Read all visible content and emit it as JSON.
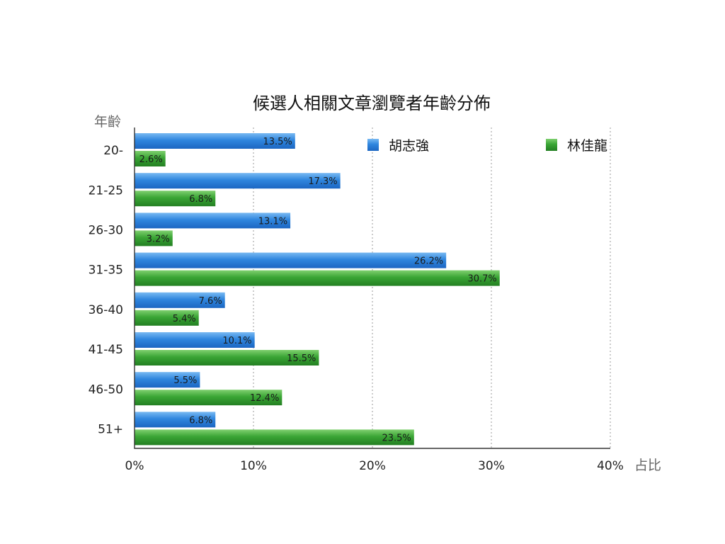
{
  "chart_data": {
    "type": "bar",
    "orientation": "horizontal",
    "title": "候選人相關文章瀏覽者年齡分佈",
    "ylabel": "年齡",
    "xlabel": "占比",
    "categories": [
      "20-",
      "21-25",
      "26-30",
      "31-35",
      "36-40",
      "41-45",
      "46-50",
      "51+"
    ],
    "series": [
      {
        "name": "胡志強",
        "color": "#2f86de",
        "values": [
          13.5,
          17.3,
          13.1,
          26.2,
          7.6,
          10.1,
          5.5,
          6.8
        ],
        "labels": [
          "13.5%",
          "17.3%",
          "13.1%",
          "26.2%",
          "7.6%",
          "10.1%",
          "5.5%",
          "6.8%"
        ]
      },
      {
        "name": "林佳龍",
        "color": "#3aa535",
        "values": [
          2.6,
          6.8,
          3.2,
          30.7,
          5.4,
          15.5,
          12.4,
          23.5
        ],
        "labels": [
          "2.6%",
          "6.8%",
          "3.2%",
          "30.7%",
          "5.4%",
          "15.5%",
          "12.4%",
          "23.5%"
        ]
      }
    ],
    "xlim": [
      0,
      40
    ],
    "xticks": [
      0,
      10,
      20,
      30,
      40
    ],
    "xtick_labels": [
      "0%",
      "10%",
      "20%",
      "30%",
      "40%"
    ],
    "grid": true,
    "legend_position": "top"
  }
}
